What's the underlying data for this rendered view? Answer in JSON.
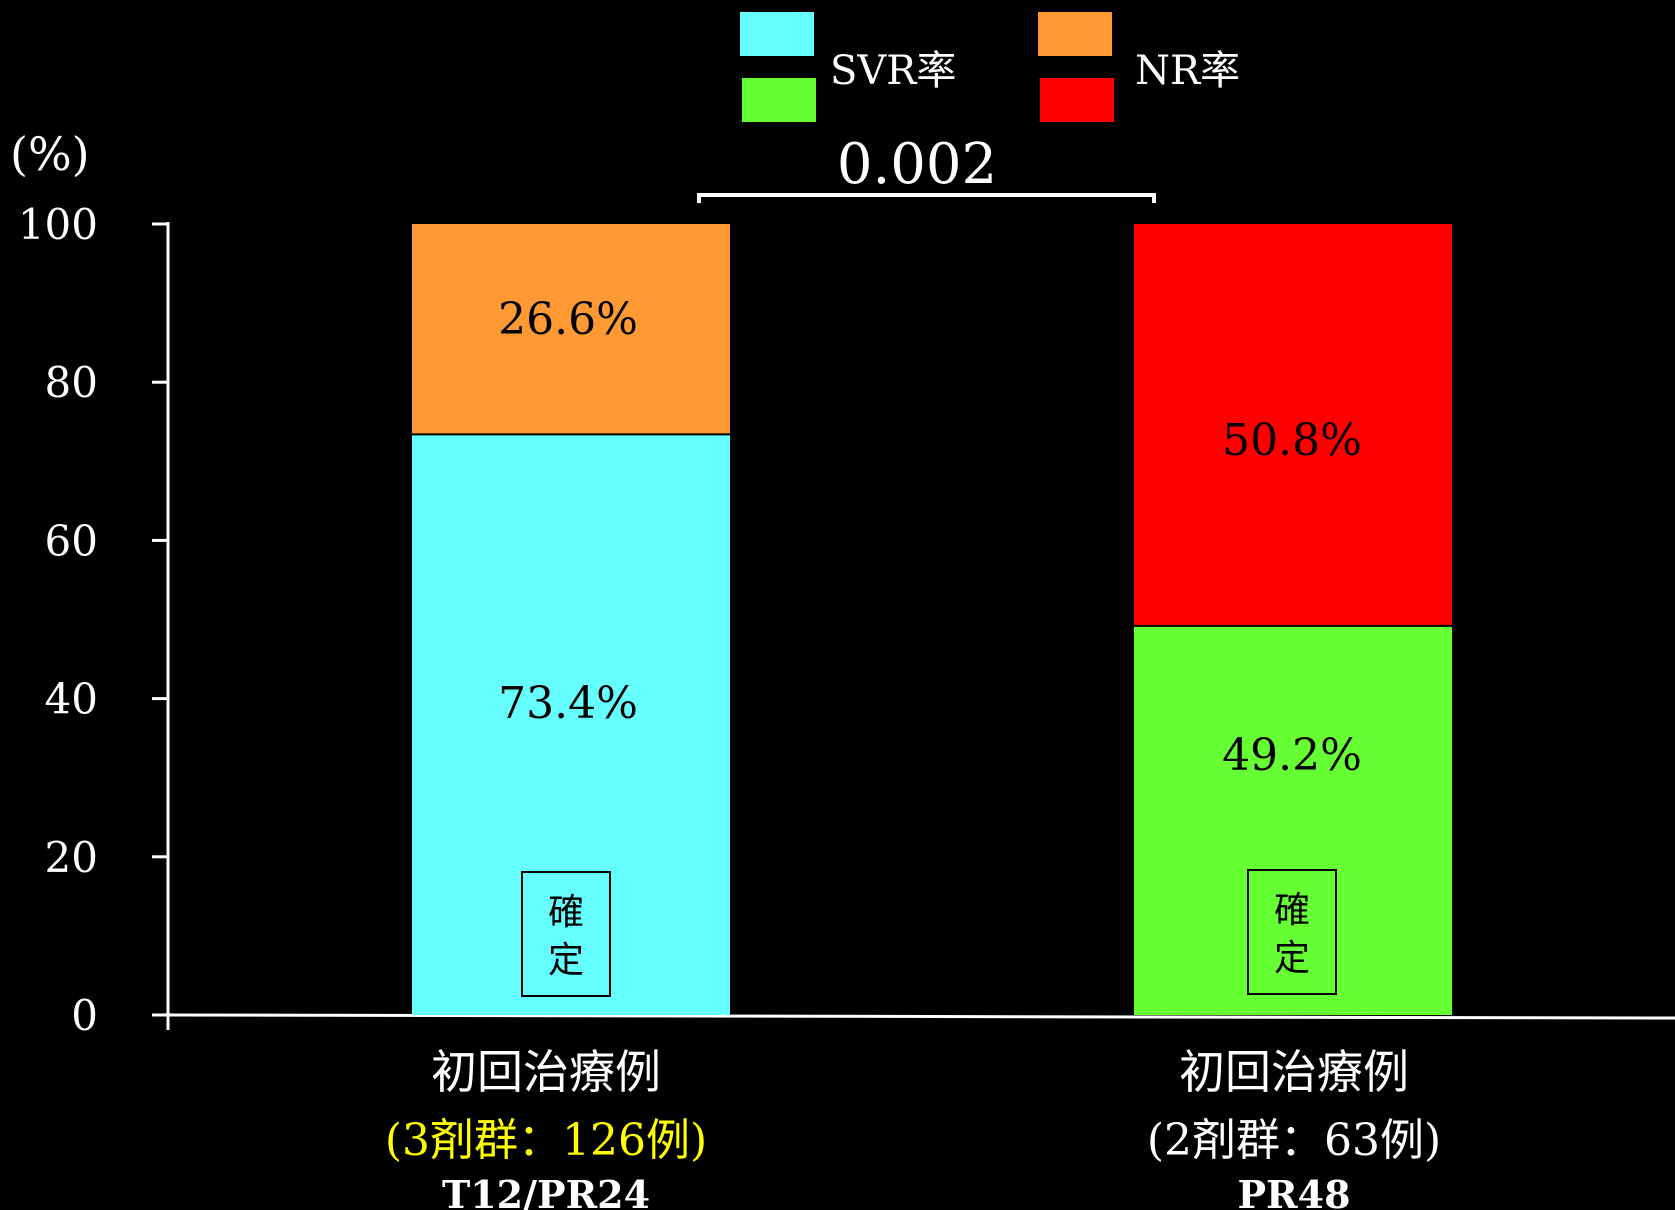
{
  "chart_data": {
    "type": "bar",
    "stacked": true,
    "unit_label": "(%)",
    "ylim": [
      0,
      100
    ],
    "yticks": [
      "0",
      "20",
      "40",
      "60",
      "80",
      "100"
    ],
    "legend": [
      {
        "label": "SVR率",
        "colors": [
          "#66ffff",
          "#66ff33"
        ]
      },
      {
        "label": "NR率",
        "colors": [
          "#ff9933",
          "#ff0000"
        ]
      }
    ],
    "legend_position": "top",
    "significance": {
      "label": "0.002",
      "between": [
        0,
        1
      ]
    },
    "bars": [
      {
        "category_lines": [
          "初回治療例",
          "(3剤群：126例)",
          "T12/PR24"
        ],
        "segments": [
          {
            "series": "SVR率",
            "value": 73.4,
            "label": "73.4%",
            "color": "#66ffff"
          },
          {
            "series": "NR率",
            "value": 26.6,
            "label": "26.6%",
            "color": "#ff9933"
          }
        ],
        "stamp": [
          "確",
          "定"
        ]
      },
      {
        "category_lines": [
          "初回治療例",
          "(2剤群：63例)",
          "PR48"
        ],
        "segments": [
          {
            "series": "SVR率",
            "value": 49.2,
            "label": "49.2%",
            "color": "#66ff33"
          },
          {
            "series": "NR率",
            "value": 50.8,
            "label": "50.8%",
            "color": "#ff0000"
          }
        ],
        "stamp": [
          "確",
          "定"
        ]
      }
    ]
  }
}
